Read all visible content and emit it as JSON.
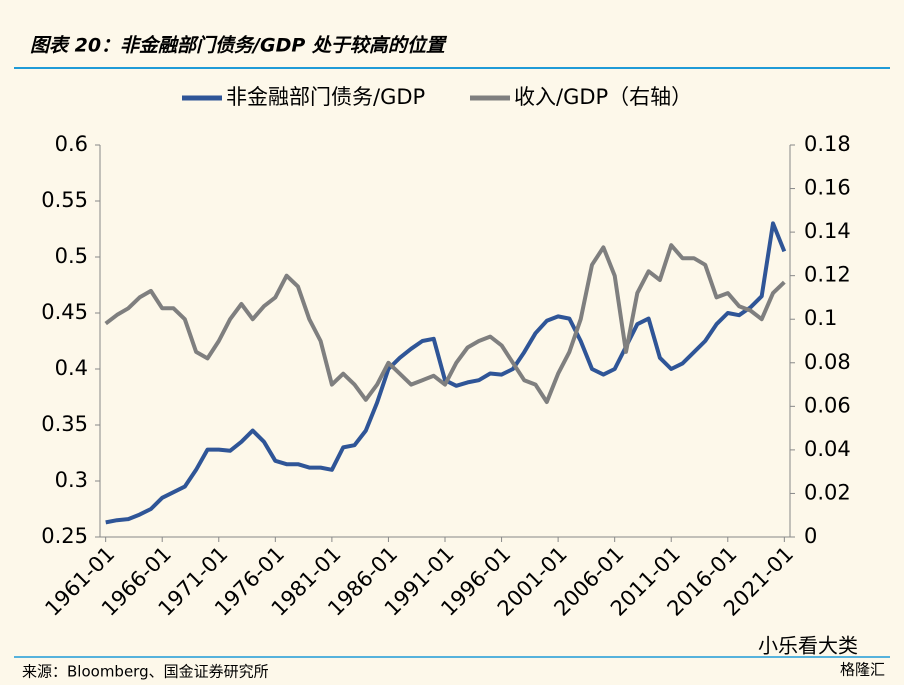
{
  "header": {
    "title": "图表 20：非金融部门债务/GDP 处于较高的位置"
  },
  "footer": {
    "source": "来源：Bloomberg、国金证券研究所"
  },
  "watermark": {
    "text": "小乐看大类",
    "brand": "格隆汇"
  },
  "chart_data": {
    "type": "line",
    "x": [
      "1961-01",
      null,
      null,
      null,
      null,
      "1966-01",
      null,
      null,
      null,
      null,
      "1971-01",
      null,
      null,
      null,
      null,
      "1976-01",
      null,
      null,
      null,
      null,
      "1981-01",
      null,
      null,
      null,
      null,
      "1986-01",
      null,
      null,
      null,
      null,
      "1991-01",
      null,
      null,
      null,
      null,
      "1996-01",
      null,
      null,
      null,
      null,
      "2001-01",
      null,
      null,
      null,
      null,
      "2006-01",
      null,
      null,
      null,
      null,
      "2011-01",
      null,
      null,
      null,
      null,
      "2016-01",
      null,
      null,
      null,
      null,
      "2021-01"
    ],
    "series": [
      {
        "name": "非金融部门债务/GDP",
        "color": "#2f5597",
        "axis": "y",
        "values": [
          0.263,
          0.265,
          0.266,
          0.27,
          0.275,
          0.285,
          0.29,
          0.295,
          0.31,
          0.328,
          0.328,
          0.327,
          0.335,
          0.345,
          0.335,
          0.318,
          0.315,
          0.315,
          0.312,
          0.312,
          0.31,
          0.33,
          0.332,
          0.345,
          0.37,
          0.4,
          0.41,
          0.418,
          0.425,
          0.427,
          0.39,
          0.385,
          0.388,
          0.39,
          0.396,
          0.395,
          0.4,
          0.415,
          0.432,
          0.443,
          0.447,
          0.445,
          0.425,
          0.4,
          0.395,
          0.4,
          0.42,
          0.44,
          0.445,
          0.41,
          0.4,
          0.405,
          0.415,
          0.425,
          0.44,
          0.45,
          0.448,
          0.455,
          0.465,
          0.53,
          0.505
        ]
      },
      {
        "name": "收入/GDP（右轴）",
        "color": "#7f7f7f",
        "axis": "y2",
        "values": [
          0.098,
          0.102,
          0.105,
          0.11,
          0.113,
          0.105,
          0.105,
          0.1,
          0.085,
          0.082,
          0.09,
          0.1,
          0.107,
          0.1,
          0.106,
          0.11,
          0.12,
          0.115,
          0.1,
          0.09,
          0.07,
          0.075,
          0.07,
          0.063,
          0.07,
          0.08,
          0.075,
          0.07,
          0.072,
          0.074,
          0.07,
          0.08,
          0.087,
          0.09,
          0.092,
          0.088,
          0.08,
          0.072,
          0.07,
          0.062,
          0.075,
          0.085,
          0.1,
          0.125,
          0.133,
          0.12,
          0.085,
          0.112,
          0.122,
          0.118,
          0.134,
          0.128,
          0.128,
          0.125,
          0.11,
          0.112,
          0.106,
          0.104,
          0.1,
          0.112,
          0.117
        ]
      }
    ],
    "ylim": [
      0.25,
      0.6
    ],
    "yticks": [
      0.25,
      0.3,
      0.35,
      0.4,
      0.45,
      0.5,
      0.55,
      0.6
    ],
    "y2lim": [
      0,
      0.18
    ],
    "y2ticks": [
      0,
      0.02,
      0.04,
      0.06,
      0.08,
      0.1,
      0.12,
      0.14,
      0.16,
      0.18
    ],
    "legend": "top"
  }
}
